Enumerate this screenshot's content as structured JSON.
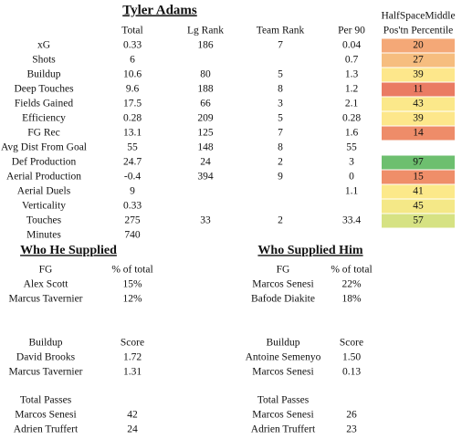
{
  "title": "Tyler Adams",
  "stats": {
    "columns": [
      "Total",
      "Lg Rank",
      "Team Rank",
      "Per 90"
    ],
    "percentile_header": [
      "HalfSpaceMiddle",
      "Pos'tn Percentile"
    ],
    "rows": [
      {
        "label": "xG",
        "cells": [
          "0.33",
          "186",
          "7",
          "0.04"
        ],
        "percentile": {
          "value": 20,
          "color": "#f4a877"
        }
      },
      {
        "label": "Shots",
        "cells": [
          "6",
          null,
          null,
          "0.7"
        ],
        "percentile": {
          "value": 27,
          "color": "#f6bd7f"
        }
      },
      {
        "label": "Buildup",
        "cells": [
          "10.6",
          "80",
          "5",
          "1.3"
        ],
        "percentile": {
          "value": 39,
          "color": "#fde78b"
        }
      },
      {
        "label": "Deep Touches",
        "cells": [
          "9.6",
          "188",
          "8",
          "1.2"
        ],
        "percentile": {
          "value": 11,
          "color": "#ea7b63"
        }
      },
      {
        "label": "Fields Gained",
        "cells": [
          "17.5",
          "66",
          "3",
          "2.1"
        ],
        "percentile": {
          "value": 43,
          "color": "#fbe88a"
        }
      },
      {
        "label": "Efficiency",
        "cells": [
          "0.28",
          "209",
          "5",
          "0.28"
        ],
        "percentile": {
          "value": 39,
          "color": "#fde78b"
        }
      },
      {
        "label": "FG Rec",
        "cells": [
          "13.1",
          "125",
          "7",
          "1.6"
        ],
        "percentile": {
          "value": 14,
          "color": "#ee8c69"
        }
      },
      {
        "label": "Avg Dist From Goal",
        "cells": [
          "55",
          "148",
          "8",
          "55"
        ],
        "percentile": null
      },
      {
        "label": "Def Production",
        "cells": [
          "24.7",
          "24",
          "2",
          "3"
        ],
        "percentile": {
          "value": 97,
          "color": "#6dbf6f"
        }
      },
      {
        "label": "Aerial Production",
        "cells": [
          "-0.4",
          "394",
          "9",
          "0"
        ],
        "percentile": {
          "value": 15,
          "color": "#ef8e69"
        }
      },
      {
        "label": "Aerial Duels",
        "cells": [
          "9",
          null,
          null,
          "1.1"
        ],
        "percentile": {
          "value": 41,
          "color": "#fce98a"
        }
      },
      {
        "label": "Verticality",
        "cells": [
          "0.33",
          null,
          null,
          null
        ],
        "percentile": {
          "value": 45,
          "color": "#f4e887"
        }
      },
      {
        "label": "Touches",
        "cells": [
          "275",
          "33",
          "2",
          "33.4"
        ],
        "percentile": {
          "value": 57,
          "color": "#d6e283"
        }
      },
      {
        "label": "Minutes",
        "cells": [
          "740",
          null,
          null,
          null
        ],
        "percentile": null
      }
    ]
  },
  "panels": [
    {
      "title": "Who He Supplied",
      "sections": [
        {
          "headers": [
            "FG",
            "% of total"
          ],
          "rows": [
            [
              "Alex Scott",
              "15%"
            ],
            [
              "Marcus Tavernier",
              "12%"
            ]
          ]
        },
        {
          "headers": [
            "Buildup",
            "Score"
          ],
          "rows": [
            [
              "David Brooks",
              "1.72"
            ],
            [
              "Marcus Tavernier",
              "1.31"
            ]
          ]
        },
        {
          "headers": [
            "Total Passes"
          ],
          "rows": [
            [
              "Marcos Senesi",
              "42"
            ],
            [
              "Adrien Truffert",
              "24"
            ]
          ]
        }
      ]
    },
    {
      "title": "Who Supplied Him",
      "sections": [
        {
          "headers": [
            "FG",
            "% of total"
          ],
          "rows": [
            [
              "Marcos Senesi",
              "22%"
            ],
            [
              "Bafode Diakite",
              "18%"
            ]
          ]
        },
        {
          "headers": [
            "Buildup",
            "Score"
          ],
          "rows": [
            [
              "Antoine Semenyo",
              "1.50"
            ],
            [
              "Marcos Senesi",
              "0.13"
            ]
          ]
        },
        {
          "headers": [
            "Total Passes"
          ],
          "rows": [
            [
              "Marcos Senesi",
              "26"
            ],
            [
              "Adrien Truffert",
              "23"
            ]
          ]
        }
      ]
    }
  ]
}
